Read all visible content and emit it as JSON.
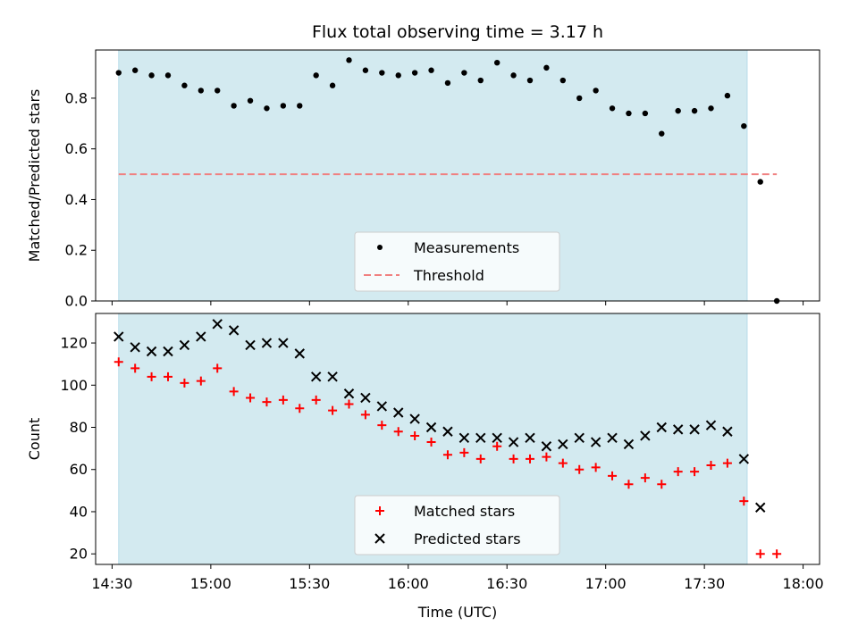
{
  "chart_data": [
    {
      "type": "scatter",
      "title": "Flux total observing time = 3.17 h",
      "xlabel": "",
      "ylabel": "Matched/Predicted stars",
      "ylim": [
        0.0,
        0.99
      ],
      "yticks": [
        "0.0",
        "0.2",
        "0.4",
        "0.6",
        "0.8"
      ],
      "xlim": [
        "14:25",
        "18:05"
      ],
      "observing_window": [
        "14:32",
        "17:43"
      ],
      "observing_window_color": "#d3eaf0",
      "legend_position": "lower center",
      "series": [
        {
          "name": "Measurements",
          "marker": "dot",
          "color": "#000000",
          "x": [
            "14:32",
            "14:37",
            "14:42",
            "14:47",
            "14:52",
            "14:57",
            "15:02",
            "15:07",
            "15:12",
            "15:17",
            "15:22",
            "15:27",
            "15:32",
            "15:37",
            "15:42",
            "15:47",
            "15:52",
            "15:57",
            "16:02",
            "16:07",
            "16:12",
            "16:17",
            "16:22",
            "16:27",
            "16:32",
            "16:37",
            "16:42",
            "16:47",
            "16:52",
            "16:57",
            "17:02",
            "17:07",
            "17:12",
            "17:17",
            "17:22",
            "17:27",
            "17:32",
            "17:37",
            "17:42",
            "17:47",
            "17:52"
          ],
          "y": [
            0.9,
            0.91,
            0.89,
            0.89,
            0.85,
            0.83,
            0.83,
            0.77,
            0.79,
            0.76,
            0.77,
            0.77,
            0.89,
            0.85,
            0.95,
            0.91,
            0.9,
            0.89,
            0.9,
            0.91,
            0.86,
            0.9,
            0.87,
            0.94,
            0.89,
            0.87,
            0.92,
            0.87,
            0.8,
            0.83,
            0.76,
            0.74,
            0.74,
            0.66,
            0.75,
            0.75,
            0.76,
            0.81,
            0.69,
            0.47,
            0.0
          ]
        },
        {
          "name": "Threshold",
          "line": "dashed",
          "color": "#f08080",
          "x": [
            "14:32",
            "17:52"
          ],
          "y": [
            0.5,
            0.5
          ]
        }
      ]
    },
    {
      "type": "scatter",
      "title": "",
      "xlabel": "Time (UTC)",
      "ylabel": "Count",
      "ylim": [
        15,
        134
      ],
      "yticks": [
        "20",
        "40",
        "60",
        "80",
        "100",
        "120"
      ],
      "xlim": [
        "14:25",
        "18:05"
      ],
      "xticks": [
        "14:30",
        "15:00",
        "15:30",
        "16:00",
        "16:30",
        "17:00",
        "17:30",
        "18:00"
      ],
      "observing_window": [
        "14:32",
        "17:43"
      ],
      "observing_window_color": "#d3eaf0",
      "legend_position": "lower center",
      "series": [
        {
          "name": "Matched stars",
          "marker": "plus",
          "color": "#ff0000",
          "x": [
            "14:32",
            "14:37",
            "14:42",
            "14:47",
            "14:52",
            "14:57",
            "15:02",
            "15:07",
            "15:12",
            "15:17",
            "15:22",
            "15:27",
            "15:32",
            "15:37",
            "15:42",
            "15:47",
            "15:52",
            "15:57",
            "16:02",
            "16:07",
            "16:12",
            "16:17",
            "16:22",
            "16:27",
            "16:32",
            "16:37",
            "16:42",
            "16:47",
            "16:52",
            "16:57",
            "17:02",
            "17:07",
            "17:12",
            "17:17",
            "17:22",
            "17:27",
            "17:32",
            "17:37",
            "17:42",
            "17:47",
            "17:52"
          ],
          "y": [
            111,
            108,
            104,
            104,
            101,
            102,
            108,
            97,
            94,
            92,
            93,
            89,
            93,
            88,
            91,
            86,
            81,
            78,
            76,
            73,
            67,
            68,
            65,
            71,
            65,
            65,
            66,
            63,
            60,
            61,
            57,
            53,
            56,
            53,
            59,
            59,
            62,
            63,
            45,
            20,
            20
          ]
        },
        {
          "name": "Predicted stars",
          "marker": "x",
          "color": "#000000",
          "x": [
            "14:32",
            "14:37",
            "14:42",
            "14:47",
            "14:52",
            "14:57",
            "15:02",
            "15:07",
            "15:12",
            "15:17",
            "15:22",
            "15:27",
            "15:32",
            "15:37",
            "15:42",
            "15:47",
            "15:52",
            "15:57",
            "16:02",
            "16:07",
            "16:12",
            "16:17",
            "16:22",
            "16:27",
            "16:32",
            "16:37",
            "16:42",
            "16:47",
            "16:52",
            "16:57",
            "17:02",
            "17:07",
            "17:12",
            "17:17",
            "17:22",
            "17:27",
            "17:32",
            "17:37",
            "17:42",
            "17:47"
          ],
          "y": [
            123,
            118,
            116,
            116,
            119,
            123,
            129,
            126,
            119,
            120,
            120,
            115,
            104,
            104,
            96,
            94,
            90,
            87,
            84,
            80,
            78,
            75,
            75,
            75,
            73,
            75,
            71,
            72,
            75,
            73,
            75,
            72,
            76,
            80,
            79,
            79,
            81,
            78,
            65,
            42
          ]
        }
      ]
    }
  ]
}
